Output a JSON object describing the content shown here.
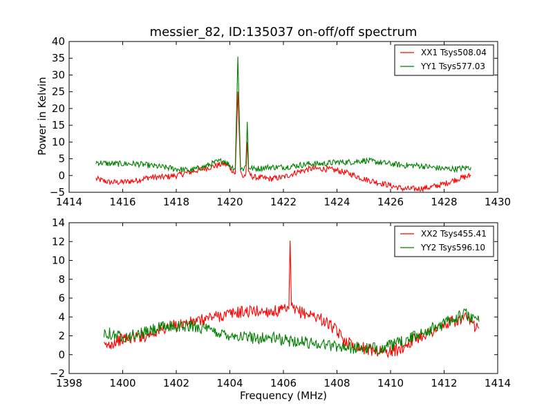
{
  "chart_data": [
    {
      "type": "line",
      "title": "messier_82, ID:135037 on-off/off spectrum",
      "xlabel": "",
      "ylabel": "Power in Kelvin",
      "xlim": [
        1414,
        1430
      ],
      "ylim": [
        -5,
        40
      ],
      "xticks": [
        "1414",
        "1416",
        "1418",
        "1420",
        "1422",
        "1424",
        "1426",
        "1428",
        "1430"
      ],
      "yticks": [
        "−5",
        "0",
        "5",
        "10",
        "15",
        "20",
        "25",
        "30",
        "35",
        "40"
      ],
      "legend_position": "top-right",
      "series": [
        {
          "name": "XX1 Tsys508.04",
          "color": "#ff0000",
          "x": [
            1415.0,
            1415.5,
            1416.0,
            1416.5,
            1417.0,
            1417.5,
            1418.0,
            1418.5,
            1419.0,
            1419.5,
            1419.8,
            1420.0,
            1420.2,
            1420.3,
            1420.4,
            1420.5,
            1420.6,
            1420.65,
            1420.7,
            1420.9,
            1421.5,
            1422.0,
            1422.5,
            1423.0,
            1423.5,
            1424.0,
            1424.5,
            1425.0,
            1425.5,
            1426.0,
            1426.5,
            1427.0,
            1427.5,
            1428.0,
            1428.5,
            1429.0
          ],
          "y": [
            -1,
            -2,
            -2,
            -1.5,
            -0.5,
            -0.5,
            0,
            1,
            2,
            3,
            3.5,
            2.5,
            0.5,
            25,
            1,
            -0.5,
            0.5,
            10,
            0.5,
            -0.5,
            -1,
            -0.5,
            1,
            2,
            2,
            1.5,
            0.5,
            -1,
            -2,
            -3,
            -4,
            -4,
            -3.5,
            -2.5,
            -1,
            0
          ]
        },
        {
          "name": "YY1 Tsys577.03",
          "color": "#008000",
          "x": [
            1415.0,
            1415.5,
            1416.0,
            1416.5,
            1417.0,
            1417.5,
            1418.0,
            1418.5,
            1419.0,
            1419.5,
            1419.8,
            1420.0,
            1420.2,
            1420.3,
            1420.4,
            1420.5,
            1420.6,
            1420.65,
            1420.7,
            1420.9,
            1421.5,
            1422.0,
            1422.5,
            1423.0,
            1423.5,
            1424.0,
            1424.5,
            1425.0,
            1425.5,
            1426.0,
            1426.5,
            1427.0,
            1427.5,
            1428.0,
            1428.5,
            1429.0
          ],
          "y": [
            4,
            3.5,
            3.5,
            3.5,
            3,
            2.5,
            2,
            1.5,
            2.5,
            4,
            4.5,
            3,
            2,
            35.5,
            2,
            2,
            3,
            16,
            2.5,
            2,
            2.5,
            2.5,
            3,
            3.5,
            3.5,
            4,
            4,
            4.5,
            4,
            3.5,
            3,
            3,
            2.5,
            2,
            2,
            2.5
          ]
        }
      ]
    },
    {
      "type": "line",
      "title": "",
      "xlabel": "Frequency (MHz)",
      "ylabel": "",
      "xlim": [
        1398,
        1414
      ],
      "ylim": [
        -2,
        14
      ],
      "xticks": [
        "1398",
        "1400",
        "1402",
        "1404",
        "1406",
        "1408",
        "1410",
        "1412",
        "1414"
      ],
      "yticks": [
        "−2",
        "0",
        "2",
        "4",
        "6",
        "8",
        "10",
        "12",
        "14"
      ],
      "legend_position": "top-right",
      "series": [
        {
          "name": "XX2 Tsys455.41",
          "color": "#ff0000",
          "x": [
            1399.3,
            1399.8,
            1400.3,
            1400.8,
            1401.3,
            1401.8,
            1402.3,
            1402.8,
            1403.3,
            1403.8,
            1404.3,
            1404.8,
            1405.3,
            1405.8,
            1406.0,
            1406.2,
            1406.25,
            1406.3,
            1406.4,
            1406.8,
            1407.3,
            1407.8,
            1408.3,
            1408.8,
            1409.3,
            1409.8,
            1410.3,
            1410.8,
            1411.3,
            1411.8,
            1412.3,
            1412.8,
            1413.3
          ],
          "y": [
            0.8,
            1.5,
            1.8,
            2,
            2.5,
            3,
            3.3,
            3.5,
            4,
            4.2,
            4.5,
            4.6,
            4.6,
            4.6,
            4.7,
            4.8,
            12.1,
            5,
            4.7,
            4.4,
            4,
            3,
            1.5,
            0.8,
            0.5,
            0.3,
            0.5,
            1.5,
            2.2,
            2.8,
            3.5,
            3.8,
            2.8
          ]
        },
        {
          "name": "YY2 Tsys596.10",
          "color": "#008000",
          "x": [
            1399.3,
            1399.8,
            1400.3,
            1400.8,
            1401.3,
            1401.8,
            1402.3,
            1402.8,
            1403.3,
            1403.8,
            1404.3,
            1404.8,
            1405.3,
            1405.8,
            1406.0,
            1406.2,
            1406.25,
            1406.3,
            1406.4,
            1406.8,
            1407.3,
            1407.8,
            1408.3,
            1408.8,
            1409.3,
            1409.8,
            1410.3,
            1410.8,
            1411.3,
            1411.8,
            1412.3,
            1412.8,
            1413.3
          ],
          "y": [
            2.5,
            2,
            2,
            2.3,
            2.8,
            3,
            3,
            3,
            2.5,
            2.2,
            2,
            1.8,
            1.8,
            1.7,
            1.5,
            1.5,
            1.5,
            1.5,
            1.5,
            1.3,
            1.2,
            1,
            0.8,
            0.7,
            0.6,
            0.8,
            1.2,
            1.8,
            2.5,
            3,
            3.8,
            4.3,
            3.5
          ]
        }
      ]
    }
  ]
}
